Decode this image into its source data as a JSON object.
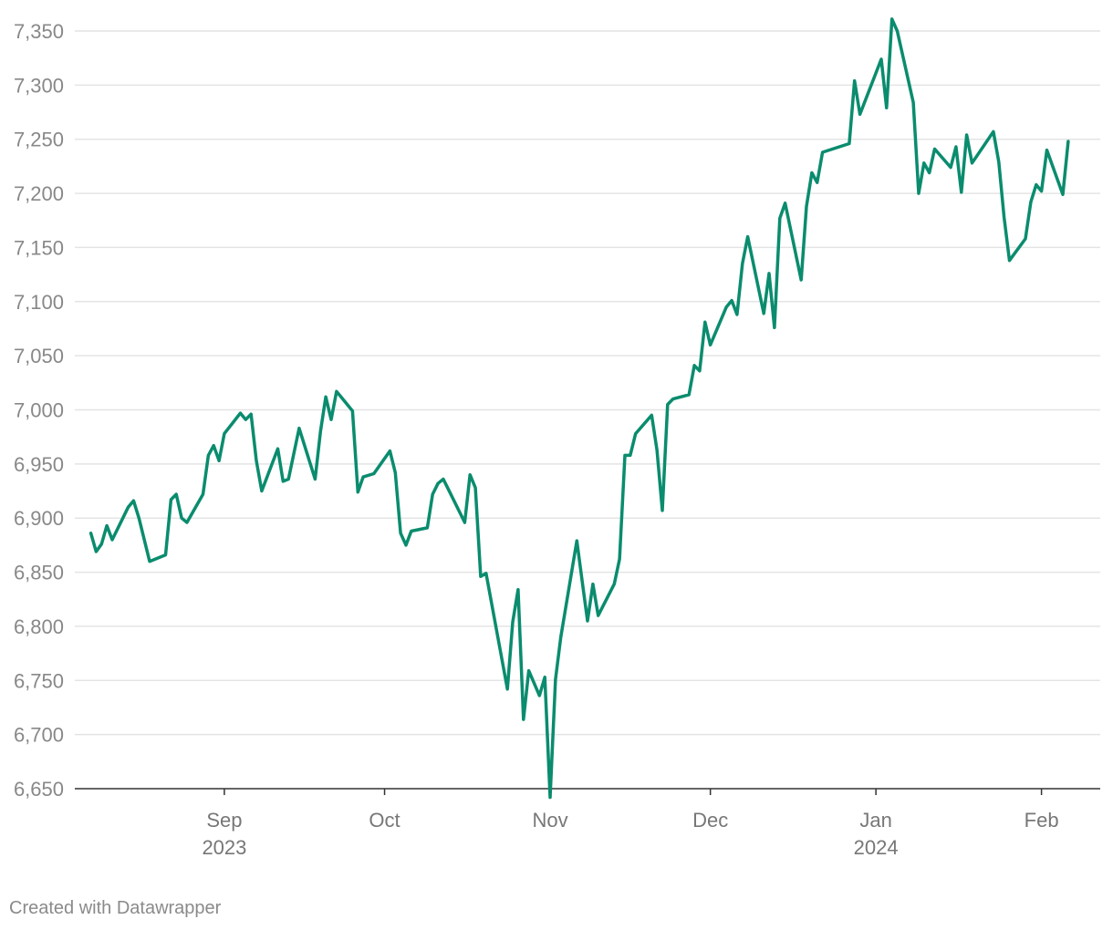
{
  "credit": "Created with Datawrapper",
  "colors": {
    "line": "#0a8c6e",
    "grid": "#e4e4e4",
    "axis": "#333333",
    "tick_text": "#888888"
  },
  "chart_data": {
    "type": "line",
    "title": "",
    "xlabel": "",
    "ylabel": "",
    "ylim": [
      6650,
      7350
    ],
    "y_ticks": [
      6650,
      6700,
      6750,
      6800,
      6850,
      6900,
      6950,
      7000,
      7050,
      7100,
      7150,
      7200,
      7250,
      7300,
      7350
    ],
    "y_tick_labels": [
      "6,650",
      "6,700",
      "6,750",
      "6,800",
      "6,850",
      "6,900",
      "6,950",
      "7,000",
      "7,050",
      "7,100",
      "7,150",
      "7,200",
      "7,250",
      "7,300",
      "7,350"
    ],
    "x_range": [
      "2023-08-04",
      "2024-02-12"
    ],
    "x_ticks": [
      {
        "date": "2023-09-01",
        "label": "Sep",
        "sublabel": "2023"
      },
      {
        "date": "2023-10-01",
        "label": "Oct",
        "sublabel": ""
      },
      {
        "date": "2023-11-01",
        "label": "Nov",
        "sublabel": ""
      },
      {
        "date": "2023-12-01",
        "label": "Dec",
        "sublabel": ""
      },
      {
        "date": "2024-01-01",
        "label": "Jan",
        "sublabel": "2024"
      },
      {
        "date": "2024-02-01",
        "label": "Feb",
        "sublabel": ""
      }
    ],
    "grid": true,
    "series": [
      {
        "color": "#0a8c6e",
        "points": [
          [
            "2023-08-07",
            6886
          ],
          [
            "2023-08-08",
            6869
          ],
          [
            "2023-08-09",
            6876
          ],
          [
            "2023-08-10",
            6893
          ],
          [
            "2023-08-11",
            6880
          ],
          [
            "2023-08-14",
            6910
          ],
          [
            "2023-08-15",
            6916
          ],
          [
            "2023-08-16",
            6900
          ],
          [
            "2023-08-18",
            6860
          ],
          [
            "2023-08-21",
            6866
          ],
          [
            "2023-08-22",
            6917
          ],
          [
            "2023-08-23",
            6922
          ],
          [
            "2023-08-24",
            6900
          ],
          [
            "2023-08-25",
            6896
          ],
          [
            "2023-08-28",
            6922
          ],
          [
            "2023-08-29",
            6958
          ],
          [
            "2023-08-30",
            6967
          ],
          [
            "2023-08-31",
            6953
          ],
          [
            "2023-09-01",
            6978
          ],
          [
            "2023-09-04",
            6997
          ],
          [
            "2023-09-05",
            6991
          ],
          [
            "2023-09-06",
            6996
          ],
          [
            "2023-09-07",
            6953
          ],
          [
            "2023-09-08",
            6925
          ],
          [
            "2023-09-11",
            6964
          ],
          [
            "2023-09-12",
            6934
          ],
          [
            "2023-09-13",
            6936
          ],
          [
            "2023-09-15",
            6983
          ],
          [
            "2023-09-18",
            6936
          ],
          [
            "2023-09-19",
            6980
          ],
          [
            "2023-09-20",
            7012
          ],
          [
            "2023-09-21",
            6991
          ],
          [
            "2023-09-22",
            7017
          ],
          [
            "2023-09-25",
            6999
          ],
          [
            "2023-09-26",
            6924
          ],
          [
            "2023-09-27",
            6938
          ],
          [
            "2023-09-29",
            6941
          ],
          [
            "2023-10-02",
            6962
          ],
          [
            "2023-10-03",
            6942
          ],
          [
            "2023-10-04",
            6886
          ],
          [
            "2023-10-05",
            6875
          ],
          [
            "2023-10-06",
            6888
          ],
          [
            "2023-10-09",
            6891
          ],
          [
            "2023-10-10",
            6922
          ],
          [
            "2023-10-11",
            6932
          ],
          [
            "2023-10-12",
            6936
          ],
          [
            "2023-10-13",
            6926
          ],
          [
            "2023-10-16",
            6896
          ],
          [
            "2023-10-17",
            6940
          ],
          [
            "2023-10-18",
            6928
          ],
          [
            "2023-10-19",
            6846
          ],
          [
            "2023-10-20",
            6849
          ],
          [
            "2023-10-24",
            6742
          ],
          [
            "2023-10-25",
            6804
          ],
          [
            "2023-10-26",
            6834
          ],
          [
            "2023-10-27",
            6714
          ],
          [
            "2023-10-28",
            6759
          ],
          [
            "2023-10-30",
            6736
          ],
          [
            "2023-10-31",
            6753
          ],
          [
            "2023-11-01",
            6642
          ],
          [
            "2023-11-02",
            6751
          ],
          [
            "2023-11-03",
            6790
          ],
          [
            "2023-11-06",
            6879
          ],
          [
            "2023-11-07",
            6842
          ],
          [
            "2023-11-08",
            6805
          ],
          [
            "2023-11-09",
            6839
          ],
          [
            "2023-11-10",
            6810
          ],
          [
            "2023-11-13",
            6839
          ],
          [
            "2023-11-14",
            6862
          ],
          [
            "2023-11-15",
            6958
          ],
          [
            "2023-11-16",
            6958
          ],
          [
            "2023-11-17",
            6978
          ],
          [
            "2023-11-20",
            6995
          ],
          [
            "2023-11-21",
            6963
          ],
          [
            "2023-11-22",
            6907
          ],
          [
            "2023-11-23",
            7005
          ],
          [
            "2023-11-24",
            7010
          ],
          [
            "2023-11-27",
            7014
          ],
          [
            "2023-11-28",
            7041
          ],
          [
            "2023-11-29",
            7036
          ],
          [
            "2023-11-30",
            7081
          ],
          [
            "2023-12-01",
            7060
          ],
          [
            "2023-12-04",
            7095
          ],
          [
            "2023-12-05",
            7101
          ],
          [
            "2023-12-06",
            7088
          ],
          [
            "2023-12-07",
            7135
          ],
          [
            "2023-12-08",
            7160
          ],
          [
            "2023-12-11",
            7089
          ],
          [
            "2023-12-12",
            7126
          ],
          [
            "2023-12-13",
            7076
          ],
          [
            "2023-12-14",
            7177
          ],
          [
            "2023-12-15",
            7191
          ],
          [
            "2023-12-18",
            7120
          ],
          [
            "2023-12-19",
            7188
          ],
          [
            "2023-12-20",
            7219
          ],
          [
            "2023-12-21",
            7210
          ],
          [
            "2023-12-22",
            7238
          ],
          [
            "2023-12-27",
            7246
          ],
          [
            "2023-12-28",
            7304
          ],
          [
            "2023-12-29",
            7273
          ],
          [
            "2024-01-02",
            7324
          ],
          [
            "2024-01-03",
            7279
          ],
          [
            "2024-01-04",
            7361
          ],
          [
            "2024-01-05",
            7350
          ],
          [
            "2024-01-08",
            7284
          ],
          [
            "2024-01-09",
            7200
          ],
          [
            "2024-01-10",
            7228
          ],
          [
            "2024-01-11",
            7219
          ],
          [
            "2024-01-12",
            7241
          ],
          [
            "2024-01-15",
            7224
          ],
          [
            "2024-01-16",
            7243
          ],
          [
            "2024-01-17",
            7201
          ],
          [
            "2024-01-18",
            7254
          ],
          [
            "2024-01-19",
            7228
          ],
          [
            "2024-01-23",
            7257
          ],
          [
            "2024-01-24",
            7229
          ],
          [
            "2024-01-25",
            7178
          ],
          [
            "2024-01-26",
            7138
          ],
          [
            "2024-01-29",
            7158
          ],
          [
            "2024-01-30",
            7192
          ],
          [
            "2024-01-31",
            7208
          ],
          [
            "2024-02-01",
            7202
          ],
          [
            "2024-02-02",
            7240
          ],
          [
            "2024-02-05",
            7199
          ],
          [
            "2024-02-06",
            7248
          ]
        ]
      }
    ]
  }
}
